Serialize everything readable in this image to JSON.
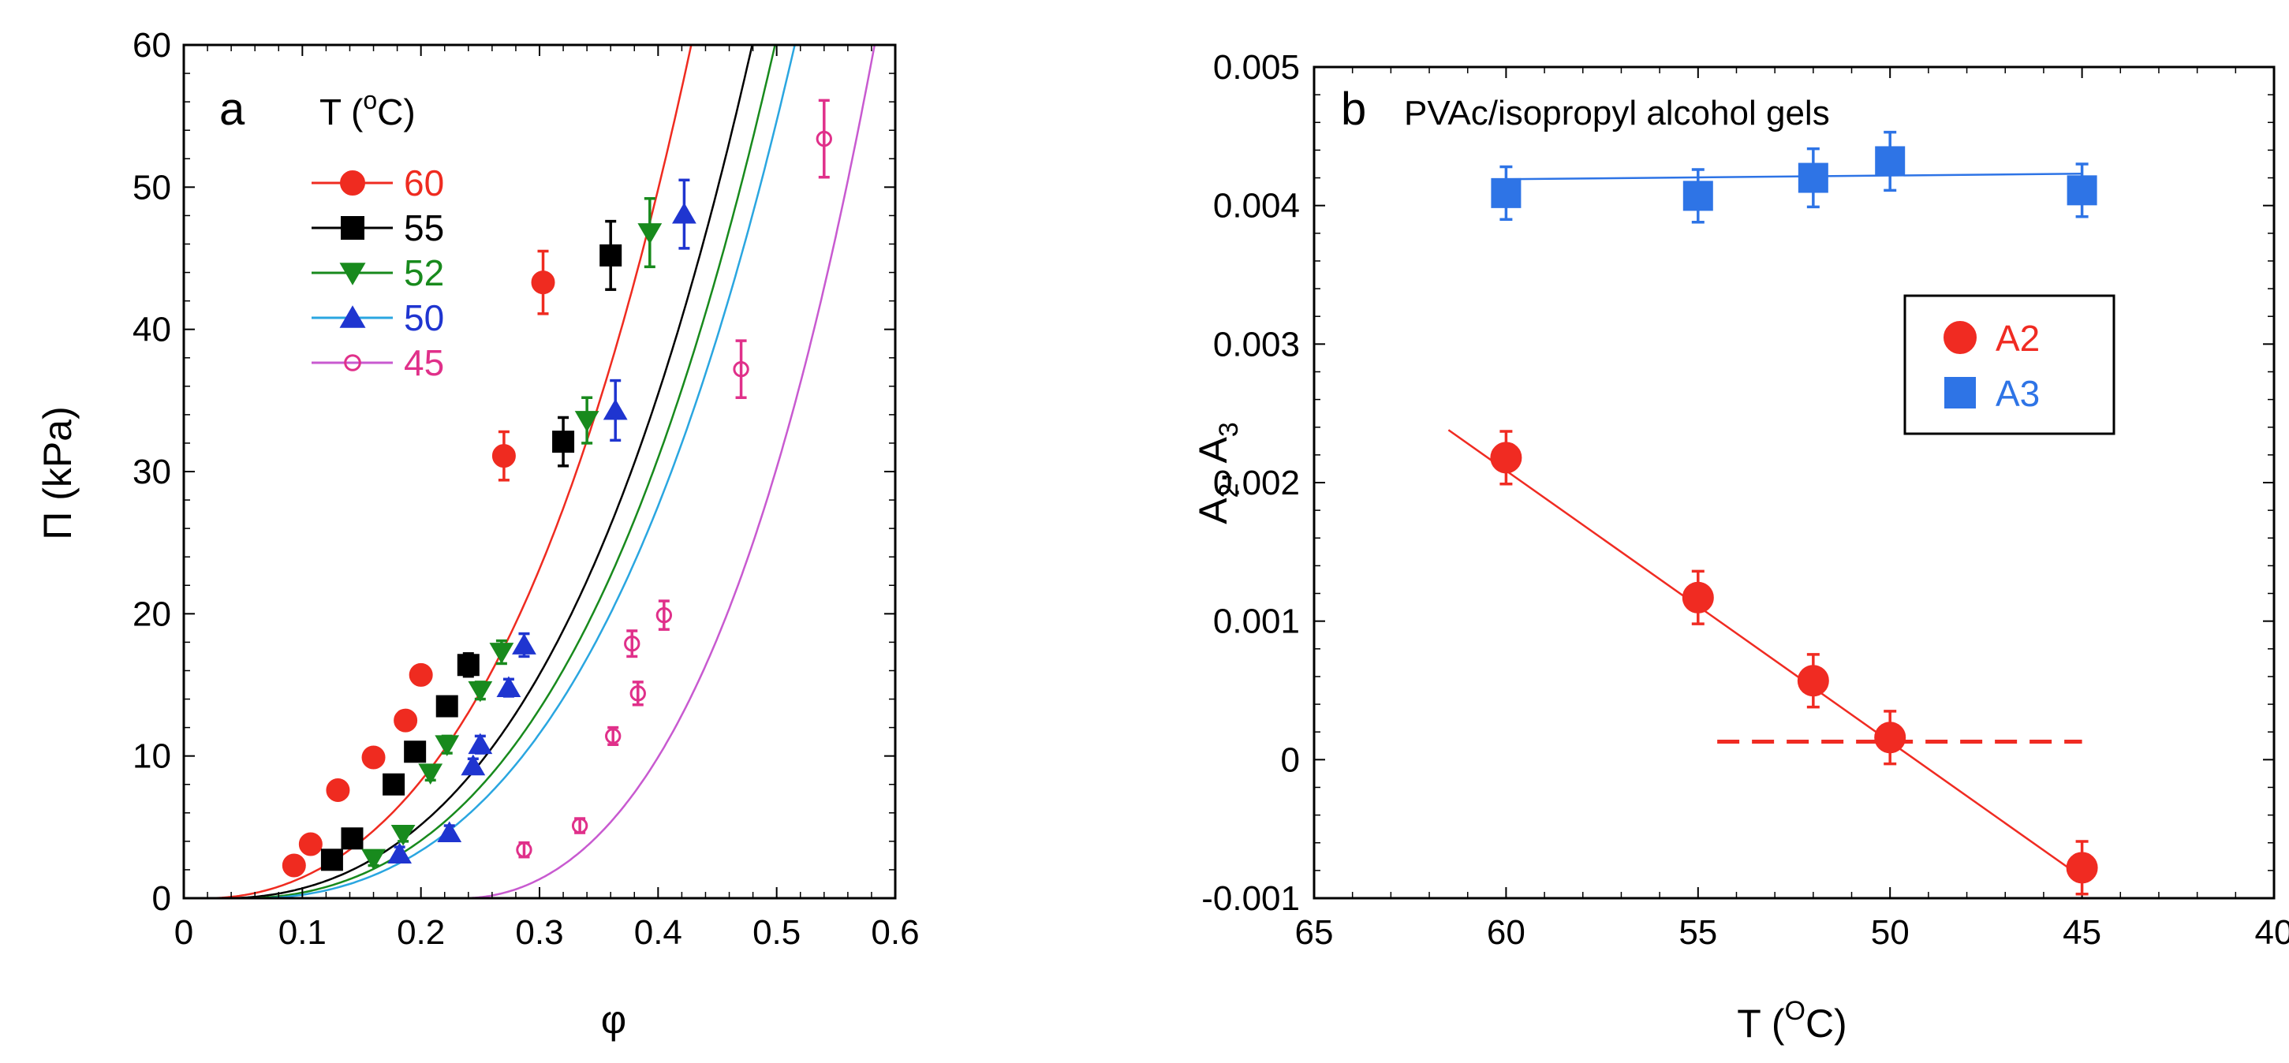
{
  "chart_data": [
    {
      "type": "scatter",
      "panel_label": "a",
      "title": "",
      "xlabel": "φ",
      "ylabel": "Π (kPa)",
      "xlim": [
        0,
        0.6
      ],
      "ylim": [
        0,
        60
      ],
      "xticks": [
        "0",
        "0.1",
        "0.2",
        "0.3",
        "0.4",
        "0.5",
        "0.6"
      ],
      "yticks": [
        "0",
        "10",
        "20",
        "30",
        "40",
        "50",
        "60"
      ],
      "legend": {
        "title": "T (°C)",
        "title_main": "T (",
        "title_sup": "o",
        "title_end": "C)",
        "position": "top-left"
      },
      "series": [
        {
          "name": "60",
          "color": "#ef2b20",
          "marker": "circle-filled",
          "points": [
            [
              0.093,
              2.3
            ],
            [
              0.107,
              3.8
            ],
            [
              0.13,
              7.6
            ],
            [
              0.16,
              9.9
            ],
            [
              0.187,
              12.5
            ],
            [
              0.2,
              15.7
            ],
            [
              0.27,
              31.1
            ],
            [
              0.303,
              43.3
            ]
          ],
          "errors": [
            0.5,
            0.5,
            0.5,
            0.6,
            0.6,
            0.6,
            1.7,
            2.2
          ],
          "fit": {
            "phi0": 0.02,
            "a": 188,
            "p": 1.95
          }
        },
        {
          "name": "55",
          "color": "#000000",
          "marker": "square-filled",
          "points": [
            [
              0.125,
              2.7
            ],
            [
              0.142,
              4.2
            ],
            [
              0.177,
              8.0
            ],
            [
              0.195,
              10.3
            ],
            [
              0.222,
              13.5
            ],
            [
              0.24,
              16.4
            ],
            [
              0.32,
              32.1
            ],
            [
              0.36,
              45.2
            ]
          ],
          "errors": [
            0.5,
            0.5,
            0.5,
            0.6,
            0.6,
            0.8,
            1.7,
            2.4
          ],
          "fit": {
            "phi0": 0.035,
            "a": 156,
            "p": 2.0
          }
        },
        {
          "name": "52",
          "color": "#188a1d",
          "marker": "triangle-down-filled",
          "points": [
            [
              0.16,
              2.8
            ],
            [
              0.185,
              4.5
            ],
            [
              0.208,
              8.8
            ],
            [
              0.222,
              10.8
            ],
            [
              0.25,
              14.6
            ],
            [
              0.268,
              17.3
            ],
            [
              0.34,
              33.6
            ],
            [
              0.393,
              46.8
            ]
          ],
          "errors": [
            0.5,
            0.5,
            0.5,
            0.6,
            0.6,
            0.8,
            1.6,
            2.4
          ],
          "fit": {
            "phi0": 0.05,
            "a": 152,
            "p": 2.0
          }
        },
        {
          "name": "50",
          "color": "#1f35d0",
          "marker": "triangle-up-filled",
          "points": [
            [
              0.182,
              3.1
            ],
            [
              0.224,
              4.6
            ],
            [
              0.244,
              9.3
            ],
            [
              0.25,
              10.8
            ],
            [
              0.274,
              14.8
            ],
            [
              0.287,
              17.8
            ],
            [
              0.364,
              34.3
            ],
            [
              0.422,
              48.1
            ]
          ],
          "errors": [
            0.5,
            0.5,
            0.5,
            0.6,
            0.6,
            0.8,
            2.1,
            2.4
          ],
          "fit": {
            "phi0": 0.06,
            "a": 146,
            "p": 2.0
          }
        },
        {
          "name": "45",
          "color": "#e0308a",
          "marker": "circle-open",
          "points": [
            [
              0.287,
              3.4
            ],
            [
              0.334,
              5.1
            ],
            [
              0.362,
              11.4
            ],
            [
              0.378,
              17.9
            ],
            [
              0.383,
              14.4
            ],
            [
              0.405,
              19.9
            ],
            [
              0.47,
              37.2
            ],
            [
              0.54,
              53.4
            ]
          ],
          "errors": [
            0.5,
            0.5,
            0.6,
            0.9,
            0.8,
            1.0,
            2.0,
            2.7
          ],
          "fit": {
            "phi0": 0.235,
            "a": 300,
            "p": 2.0
          }
        }
      ]
    },
    {
      "type": "scatter",
      "panel_label": "b",
      "title": "PVAc/isopropyl alcohol gels",
      "xlabel": "T (°C)",
      "xlabel_main": "T (",
      "xlabel_sup": "O",
      "xlabel_end": "C)",
      "ylabel": "A₂, A₃",
      "ylabel_parts": {
        "a": "A",
        "sub1": "2",
        "sep": ", A",
        "sub2": "3"
      },
      "xlim": [
        65,
        40
      ],
      "ylim": [
        -0.001,
        0.005
      ],
      "xticks": [
        "65",
        "60",
        "55",
        "50",
        "45",
        "40"
      ],
      "yticks": [
        "-0.001",
        "0",
        "0.001",
        "0.002",
        "0.003",
        "0.004",
        "0.005"
      ],
      "legend_position": "right-middle",
      "series": [
        {
          "name": "A2",
          "color": "#f02b22",
          "marker": "circle-filled",
          "points": [
            [
              60,
              0.00218
            ],
            [
              55,
              0.00117
            ],
            [
              52,
              0.00057
            ],
            [
              50,
              0.00016
            ],
            [
              45,
              -0.00078
            ]
          ],
          "errors": [
            0.00019,
            0.00019,
            0.00019,
            0.00019,
            0.00019
          ],
          "fit": [
            [
              61.5,
              0.00238
            ],
            [
              45,
              -0.00085
            ]
          ]
        },
        {
          "name": "A3",
          "color": "#2e74e6",
          "marker": "square-filled",
          "points": [
            [
              60,
              0.00409
            ],
            [
              55,
              0.00407
            ],
            [
              52,
              0.0042
            ],
            [
              50,
              0.00432
            ],
            [
              45,
              0.00411
            ]
          ],
          "errors": [
            0.00019,
            0.00019,
            0.00021,
            0.00021,
            0.00019
          ],
          "fit": [
            [
              60,
              0.00419
            ],
            [
              45,
              0.00423
            ]
          ]
        }
      ],
      "reference_line": {
        "value": 0.00013,
        "x_from": 54.5,
        "x_to": 45,
        "style": "dashed",
        "color": "#f02b22"
      }
    }
  ]
}
